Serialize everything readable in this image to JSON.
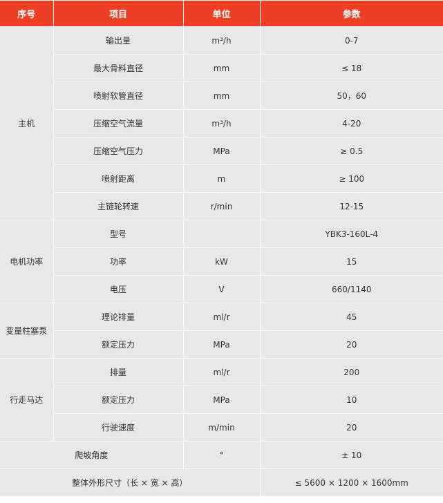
{
  "header": {
    "col_no": "序号",
    "col_item": "项目",
    "col_unit": "单位",
    "col_param": "参数"
  },
  "colors": {
    "header_bg": "#ee3e23",
    "cell_bg": "#e8e8ea"
  },
  "groups": {
    "main": "主机",
    "motor": "电机功率",
    "pump": "变量柱塞泵",
    "travel": "行走马达"
  },
  "rows": [
    {
      "item": "输出量",
      "unit": "m³/h",
      "param": "0-7"
    },
    {
      "item": "最大骨料直径",
      "unit": "mm",
      "param": "≤ 18"
    },
    {
      "item": "喷射软管直径",
      "unit": "mm",
      "param": "50，60"
    },
    {
      "item": "压缩空气流量",
      "unit": "m³/h",
      "param": "4-20"
    },
    {
      "item": "压缩空气压力",
      "unit": "MPa",
      "param": "≥ 0.5"
    },
    {
      "item": "喷射距离",
      "unit": "m",
      "param": "≥ 100"
    },
    {
      "item": "主链轮转速",
      "unit": "r/min",
      "param": "12-15"
    },
    {
      "item": "型号",
      "unit": "",
      "param": "YBK3-160L-4"
    },
    {
      "item": "功率",
      "unit": "kW",
      "param": "15"
    },
    {
      "item": "电压",
      "unit": "V",
      "param": "660/1140"
    },
    {
      "item": "理论排量",
      "unit": "ml/r",
      "param": "45"
    },
    {
      "item": "额定压力",
      "unit": "MPa",
      "param": "20"
    },
    {
      "item": "排量",
      "unit": "ml/r",
      "param": "200"
    },
    {
      "item": "额定压力",
      "unit": "MPa",
      "param": "10"
    },
    {
      "item": "行驶速度",
      "unit": "m/min",
      "param": "20"
    },
    {
      "item": "爬坡角度",
      "unit": "°",
      "param": "± 10"
    },
    {
      "item": "整体外形尺寸（长 × 宽 × 高）",
      "param": "≤ 5600 × 1200 × 1600mm"
    }
  ]
}
